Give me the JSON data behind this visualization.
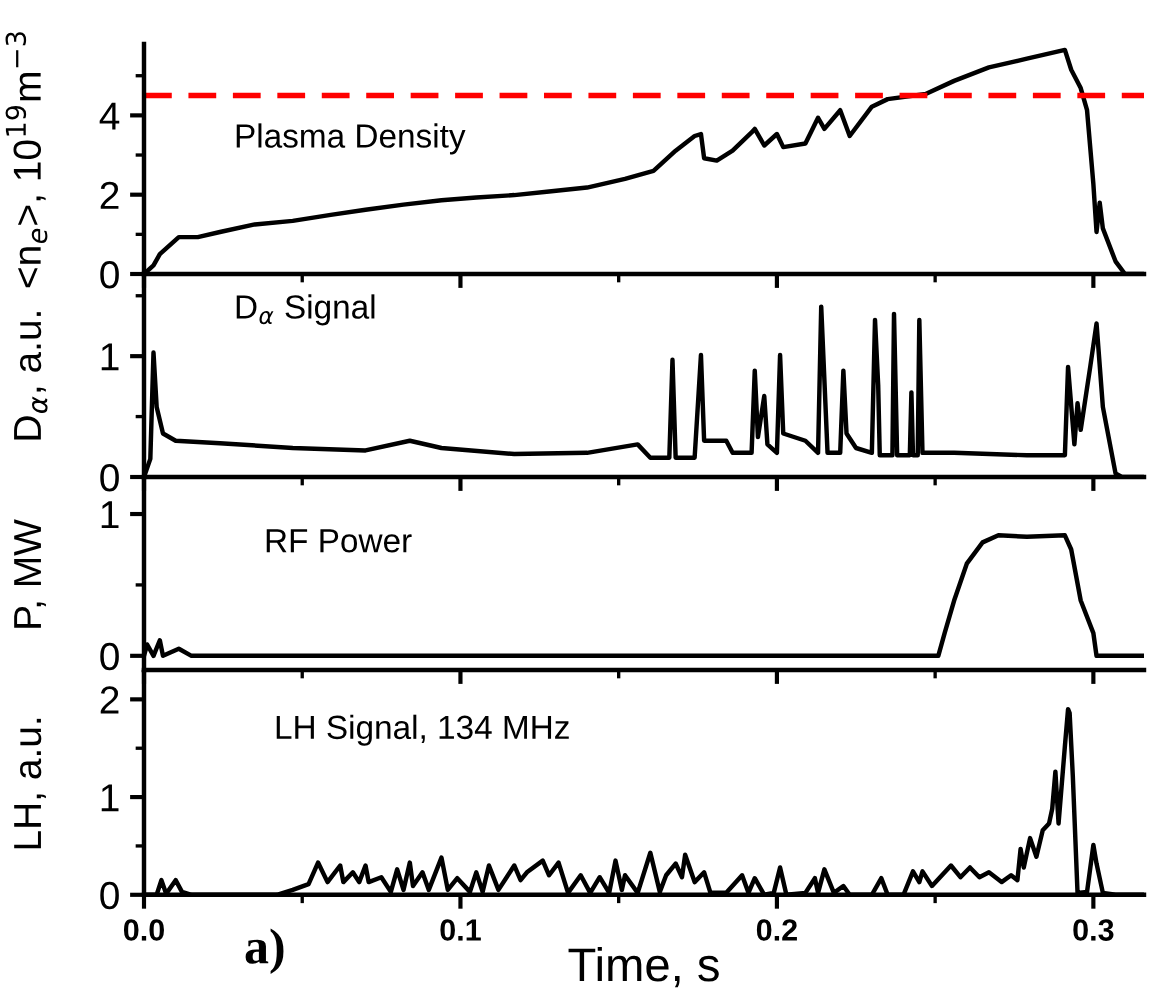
{
  "chart_data": [
    {
      "type": "line",
      "ylabel": "<n$_{e}$>, 10$^{19}$m$^{−3}$",
      "annotations": [
        "Plasma Density"
      ],
      "xlim": [
        0,
        0.316
      ],
      "ylim": [
        0,
        5.8
      ],
      "yticks": [
        0,
        2,
        4
      ],
      "xticks": [
        0,
        0.1,
        0.2,
        0.3
      ],
      "tick_labels": "y",
      "grid": false,
      "legend": false,
      "color": "#000000",
      "ref_lines": [
        {
          "axis": "y",
          "value": 4.5,
          "color": "#ff0000",
          "line_style": "dashed"
        }
      ],
      "x": [
        0,
        0.003,
        0.005,
        0.011,
        0.017,
        0.024,
        0.035,
        0.047,
        0.059,
        0.07,
        0.082,
        0.094,
        0.105,
        0.117,
        0.128,
        0.14,
        0.152,
        0.161,
        0.168,
        0.174,
        0.176,
        0.177,
        0.181,
        0.186,
        0.192,
        0.193,
        0.196,
        0.2,
        0.202,
        0.209,
        0.213,
        0.215,
        0.22,
        0.223,
        0.23,
        0.235,
        0.247,
        0.256,
        0.267,
        0.279,
        0.291,
        0.293,
        0.296,
        0.298,
        0.3,
        0.301,
        0.302,
        0.303,
        0.307,
        0.31,
        0.316
      ],
      "values": [
        0,
        0.22,
        0.5,
        0.93,
        0.93,
        1.06,
        1.25,
        1.34,
        1.49,
        1.62,
        1.75,
        1.86,
        1.93,
        1.99,
        2.08,
        2.18,
        2.4,
        2.6,
        3.11,
        3.48,
        3.53,
        2.92,
        2.86,
        3.11,
        3.57,
        3.66,
        3.24,
        3.53,
        3.2,
        3.29,
        3.94,
        3.66,
        4.13,
        3.48,
        4.22,
        4.41,
        4.54,
        4.87,
        5.21,
        5.43,
        5.65,
        5.15,
        4.69,
        4.13,
        2.27,
        1.06,
        1.8,
        1.15,
        0.32,
        0,
        0
      ]
    },
    {
      "type": "line",
      "ylabel": "D$_{α}$, a.u.",
      "annotations": [
        "D$_{α}$ Signal"
      ],
      "xlim": [
        0,
        0.316
      ],
      "ylim": [
        0,
        1.68
      ],
      "yticks": [
        0,
        1
      ],
      "xticks": [
        0,
        0.1,
        0.2,
        0.3
      ],
      "tick_labels": "y",
      "grid": false,
      "legend": false,
      "color": "#000000",
      "x": [
        0,
        0.002,
        0.003,
        0.004,
        0.006,
        0.01,
        0.024,
        0.047,
        0.07,
        0.084,
        0.094,
        0.117,
        0.14,
        0.156,
        0.16,
        0.166,
        0.167,
        0.168,
        0.174,
        0.176,
        0.177,
        0.184,
        0.186,
        0.192,
        0.193,
        0.194,
        0.196,
        0.197,
        0.2,
        0.201,
        0.202,
        0.209,
        0.213,
        0.214,
        0.216,
        0.22,
        0.221,
        0.222,
        0.225,
        0.23,
        0.231,
        0.232,
        0.2325,
        0.2365,
        0.237,
        0.238,
        0.242,
        0.2425,
        0.243,
        0.2445,
        0.245,
        0.246,
        0.256,
        0.279,
        0.291,
        0.292,
        0.294,
        0.295,
        0.296,
        0.299,
        0.301,
        0.303,
        0.307,
        0.309,
        0.316
      ],
      "values": [
        0,
        0.15,
        1.03,
        0.58,
        0.36,
        0.3,
        0.28,
        0.24,
        0.22,
        0.3,
        0.24,
        0.19,
        0.2,
        0.27,
        0.16,
        0.16,
        0.97,
        0.16,
        0.16,
        1.01,
        0.3,
        0.3,
        0.2,
        0.2,
        0.88,
        0.33,
        0.67,
        0.27,
        0.2,
        1.01,
        0.36,
        0.3,
        0.2,
        1.41,
        0.2,
        0.2,
        0.88,
        0.36,
        0.24,
        0.2,
        1.3,
        0.76,
        0.18,
        0.18,
        1.35,
        0.18,
        0.18,
        0.7,
        0.18,
        0.18,
        1.3,
        0.2,
        0.2,
        0.18,
        0.18,
        0.91,
        0.27,
        0.61,
        0.39,
        0.91,
        1.27,
        0.58,
        0.03,
        0,
        0
      ]
    },
    {
      "type": "line",
      "ylabel": "P, MW",
      "annotations": [
        "RF Power"
      ],
      "xlim": [
        0,
        0.316
      ],
      "ylim": [
        -0.1,
        1.24
      ],
      "yticks": [
        0,
        1
      ],
      "xticks": [
        0,
        0.1,
        0.2,
        0.3
      ],
      "tick_labels": "y",
      "grid": false,
      "legend": false,
      "color": "#000000",
      "x": [
        0,
        0.001,
        0.003,
        0.005,
        0.006,
        0.011,
        0.015,
        0.251,
        0.253,
        0.256,
        0.26,
        0.265,
        0.27,
        0.279,
        0.291,
        0.293,
        0.296,
        0.3,
        0.301,
        0.316
      ],
      "values": [
        0,
        0.08,
        0,
        0.11,
        0,
        0.05,
        0,
        0,
        0.16,
        0.39,
        0.65,
        0.8,
        0.85,
        0.84,
        0.85,
        0.75,
        0.39,
        0.16,
        0,
        0
      ]
    },
    {
      "type": "line",
      "ylabel": "LH, a.u.",
      "xlabel": "Time, s",
      "annotations": [
        "LH Signal, 134 MHz",
        "a)"
      ],
      "xlim": [
        0,
        0.316
      ],
      "ylim": [
        0,
        2.28
      ],
      "yticks": [
        0,
        1,
        2
      ],
      "xticks": [
        {
          "value": 0,
          "label": "0.0"
        },
        0.1,
        0.2,
        0.3
      ],
      "grid": false,
      "legend": false,
      "color": "#000000",
      "x": [
        0,
        0.004,
        0.0055,
        0.007,
        0.01,
        0.012,
        0.015,
        0.042,
        0.047,
        0.052,
        0.055,
        0.058,
        0.062,
        0.063,
        0.066,
        0.068,
        0.07,
        0.071,
        0.075,
        0.078,
        0.08,
        0.082,
        0.084,
        0.085,
        0.088,
        0.09,
        0.094,
        0.096,
        0.099,
        0.103,
        0.105,
        0.107,
        0.109,
        0.112,
        0.117,
        0.119,
        0.121,
        0.126,
        0.128,
        0.131,
        0.134,
        0.138,
        0.141,
        0.144,
        0.147,
        0.149,
        0.151,
        0.152,
        0.156,
        0.16,
        0.163,
        0.165,
        0.168,
        0.17,
        0.171,
        0.174,
        0.177,
        0.179,
        0.184,
        0.189,
        0.191,
        0.193,
        0.196,
        0.199,
        0.201,
        0.203,
        0.209,
        0.212,
        0.213,
        0.215,
        0.218,
        0.221,
        0.223,
        0.23,
        0.233,
        0.235,
        0.24,
        0.243,
        0.245,
        0.246,
        0.249,
        0.255,
        0.258,
        0.261,
        0.264,
        0.267,
        0.271,
        0.274,
        0.276,
        0.277,
        0.278,
        0.28,
        0.282,
        0.284,
        0.286,
        0.287,
        0.288,
        0.289,
        0.291,
        0.292,
        0.2925,
        0.2935,
        0.295,
        0.298,
        0.3,
        0.301,
        0.303,
        0.307,
        0.316
      ],
      "values": [
        0,
        0,
        0.15,
        0.01,
        0.15,
        0.03,
        0,
        0,
        0.05,
        0.11,
        0.33,
        0.13,
        0.3,
        0.13,
        0.23,
        0.13,
        0.3,
        0.13,
        0.18,
        0.03,
        0.26,
        0.05,
        0.33,
        0.09,
        0.23,
        0.05,
        0.38,
        0.05,
        0.17,
        0.03,
        0.23,
        0.03,
        0.3,
        0.05,
        0.3,
        0.15,
        0.23,
        0.35,
        0.2,
        0.33,
        0.02,
        0.2,
        0.02,
        0.18,
        0.02,
        0.35,
        0.05,
        0.2,
        0.02,
        0.43,
        0.03,
        0.2,
        0.32,
        0.18,
        0.41,
        0.13,
        0.23,
        0.02,
        0.02,
        0.2,
        0.02,
        0.17,
        0,
        0.02,
        0.28,
        0,
        0.02,
        0.17,
        0.02,
        0.26,
        0.02,
        0.09,
        0,
        0,
        0.17,
        0,
        0,
        0.24,
        0.13,
        0.24,
        0.09,
        0.3,
        0.18,
        0.28,
        0.18,
        0.23,
        0.13,
        0.2,
        0.15,
        0.47,
        0.28,
        0.58,
        0.39,
        0.66,
        0.73,
        0.88,
        1.26,
        0.73,
        1.52,
        1.9,
        1.86,
        1.22,
        0.02,
        0.03,
        0.51,
        0.32,
        0.02,
        0,
        0
      ]
    }
  ]
}
